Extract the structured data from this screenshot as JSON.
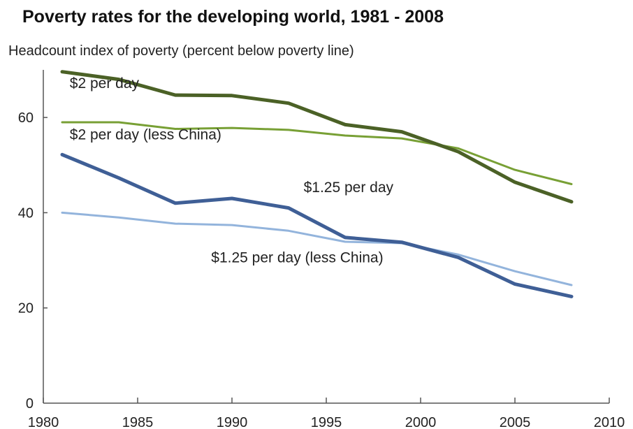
{
  "chart_data": {
    "type": "line",
    "title": "Poverty rates for the developing world, 1981 - 2008",
    "ylabel": "Headcount index of poverty (percent below poverty line)",
    "xlabel": "",
    "xlim": [
      1980,
      2010
    ],
    "ylim": [
      0,
      70
    ],
    "xticks": [
      1980,
      1985,
      1990,
      1995,
      2000,
      2005,
      2010
    ],
    "yticks": [
      0,
      20,
      40,
      60
    ],
    "x": [
      1981,
      1984,
      1987,
      1990,
      1993,
      1996,
      1999,
      2002,
      2005,
      2008
    ],
    "series": [
      {
        "name": "$2 per day",
        "color": "#4b6126",
        "width": 5,
        "values": [
          69.6,
          68.0,
          64.7,
          64.6,
          63.0,
          58.5,
          57.0,
          52.8,
          46.4,
          42.3
        ]
      },
      {
        "name": "$2 per day (less China)",
        "color": "#78a035",
        "width": 3,
        "values": [
          59.0,
          59.0,
          57.6,
          57.8,
          57.4,
          56.2,
          55.6,
          53.5,
          49.0,
          46.0
        ]
      },
      {
        "name": "$1.25 per day",
        "color": "#3f5f96",
        "width": 5,
        "values": [
          52.2,
          47.3,
          42.0,
          43.0,
          41.0,
          34.8,
          33.8,
          30.6,
          25.0,
          22.4
        ]
      },
      {
        "name": "$1.25 per day (less China)",
        "color": "#93b4dc",
        "width": 3,
        "values": [
          40.0,
          39.0,
          37.7,
          37.4,
          36.2,
          33.9,
          33.6,
          31.2,
          27.7,
          24.8
        ]
      }
    ],
    "annotations": [
      {
        "text": "$2 per day",
        "x": 1981.4,
        "y": 66.2
      },
      {
        "text": "$2 per day (less China)",
        "x": 1981.4,
        "y": 55.4
      },
      {
        "text": "$1.25 per day",
        "x": 1993.8,
        "y": 44.3
      },
      {
        "text": "$1.25 per day (less China)",
        "x": 1988.9,
        "y": 29.6
      }
    ],
    "grid": false,
    "legend": "none"
  }
}
